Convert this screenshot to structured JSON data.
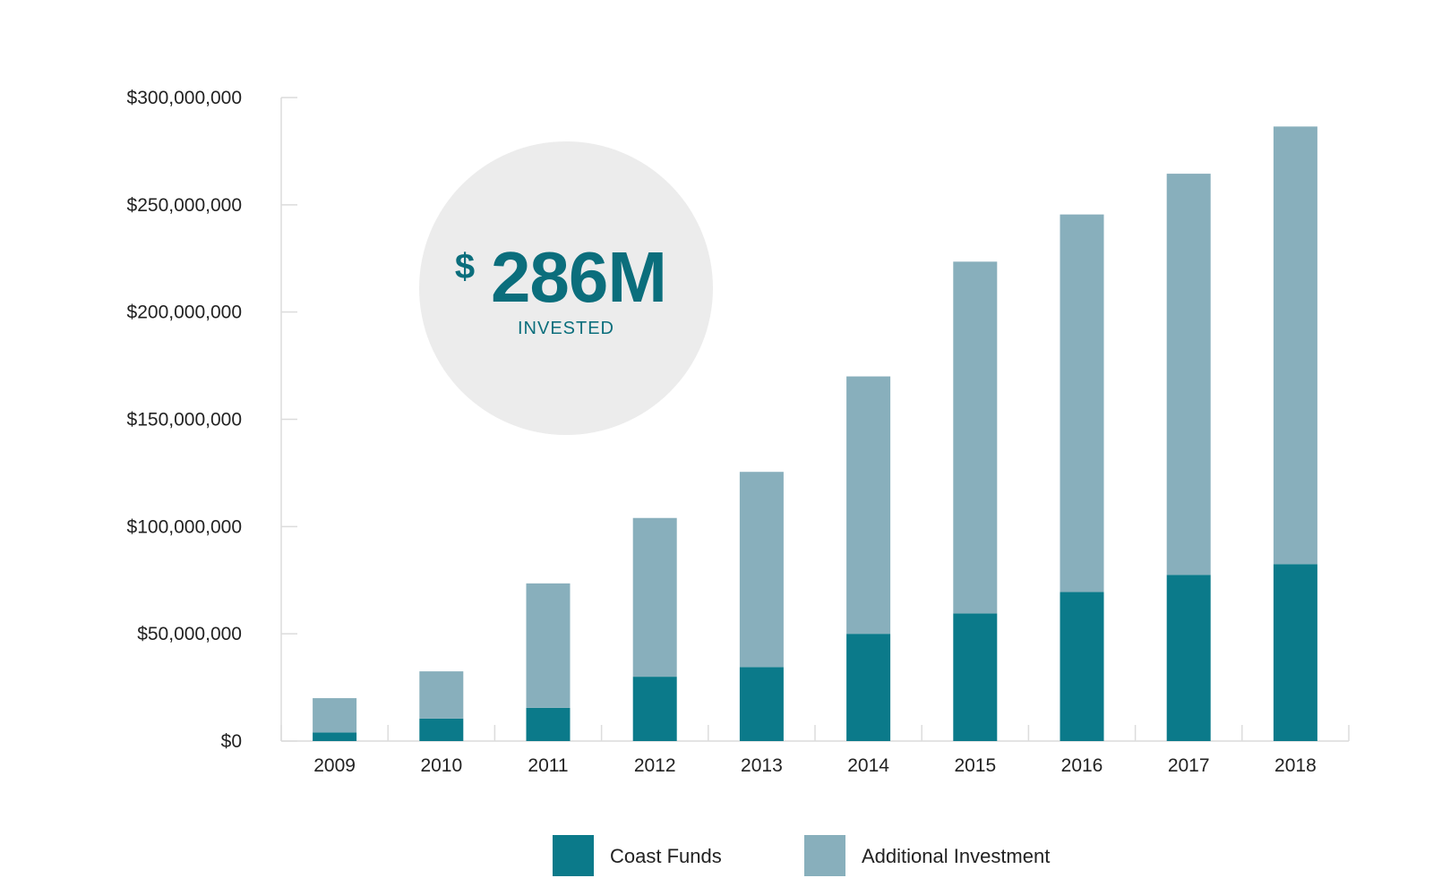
{
  "colors": {
    "coast": "#0b7a8a",
    "additional": "#88afbc",
    "badge_bg": "#ececec",
    "badge_text": "#0b6e7c",
    "axis": "#dcdcdc"
  },
  "badge": {
    "currency": "$",
    "value": "286M",
    "label": "INVESTED"
  },
  "chart_data": {
    "type": "bar",
    "stacked": true,
    "categories": [
      "2009",
      "2010",
      "2011",
      "2012",
      "2013",
      "2014",
      "2015",
      "2016",
      "2017",
      "2018"
    ],
    "series": [
      {
        "name": "Coast Funds",
        "values": [
          4000000,
          10500000,
          15500000,
          30000000,
          34500000,
          50000000,
          59500000,
          69500000,
          77500000,
          82500000
        ]
      },
      {
        "name": "Additional Investment",
        "values": [
          16000000,
          22000000,
          58000000,
          74000000,
          91000000,
          120000000,
          164000000,
          176000000,
          187000000,
          204000000
        ]
      }
    ],
    "ylim": [
      0,
      300000000
    ],
    "yticks": [
      0,
      50000000,
      100000000,
      150000000,
      200000000,
      250000000,
      300000000
    ],
    "ytick_labels": [
      "$0",
      "$50,000,000",
      "$100,000,000",
      "$150,000,000",
      "$200,000,000",
      "$250,000,000",
      "$300,000,000"
    ],
    "title": "",
    "xlabel": "",
    "ylabel": "",
    "grid": false,
    "legend_position": "bottom-center"
  }
}
